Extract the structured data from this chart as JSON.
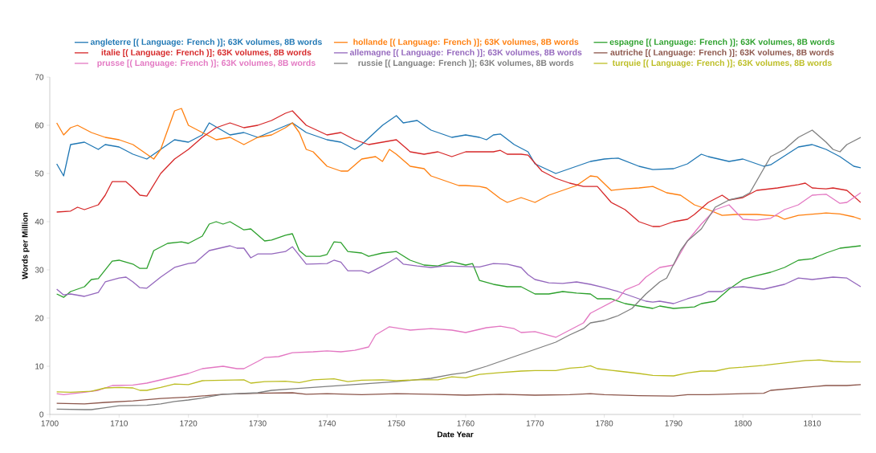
{
  "chart_data": {
    "type": "line",
    "xlabel": "Date Year",
    "ylabel": "Words per Million",
    "xlim": [
      1700,
      1817
    ],
    "ylim": [
      0,
      70
    ],
    "xticks": [
      1700,
      1710,
      1720,
      1730,
      1740,
      1750,
      1760,
      1770,
      1780,
      1790,
      1800,
      1810
    ],
    "yticks": [
      0,
      10,
      20,
      30,
      40,
      50,
      60,
      70
    ],
    "grid": false,
    "legend": "top",
    "marker": "none",
    "line_style": "solid",
    "series": [
      {
        "name": "angleterre [( Language: French )]; 63K volumes, 8B words",
        "color": "#1f77b4",
        "x": [
          1701,
          1702,
          1703,
          1705,
          1707,
          1708,
          1710,
          1712,
          1714,
          1715,
          1718,
          1720,
          1722,
          1723,
          1726,
          1728,
          1730,
          1735,
          1737,
          1740,
          1742,
          1744,
          1745,
          1748,
          1750,
          1751,
          1753,
          1755,
          1758,
          1760,
          1762,
          1763,
          1764,
          1765,
          1767,
          1769,
          1770,
          1773,
          1775,
          1778,
          1780,
          1782,
          1785,
          1787,
          1790,
          1792,
          1794,
          1795,
          1798,
          1800,
          1803,
          1804,
          1808,
          1810,
          1812,
          1814,
          1816,
          1817
        ],
        "values": [
          52,
          49.5,
          56,
          56.5,
          55,
          56,
          55.5,
          54,
          53,
          54,
          57,
          56.5,
          58,
          60.5,
          58,
          58.5,
          57.5,
          60.5,
          58.5,
          57,
          56.5,
          55,
          56,
          60,
          62,
          60.5,
          61,
          59,
          57.5,
          58,
          57.5,
          57,
          58,
          58.2,
          56,
          54.5,
          52,
          50,
          51,
          52.5,
          53,
          53.2,
          51.5,
          50.8,
          51,
          52,
          54,
          53.5,
          52.5,
          53,
          51.5,
          51.8,
          55.5,
          56,
          55,
          53.5,
          51.5,
          51.2
        ]
      },
      {
        "name": "hollande [( Language: French )]; 63K volumes, 8B words",
        "color": "#ff7f0e",
        "x": [
          1701,
          1702,
          1703,
          1704,
          1706,
          1708,
          1710,
          1712,
          1714,
          1715,
          1716,
          1718,
          1719,
          1720,
          1722,
          1724,
          1726,
          1728,
          1730,
          1732,
          1734,
          1735,
          1736,
          1737,
          1738,
          1740,
          1742,
          1743,
          1745,
          1747,
          1748,
          1749,
          1750,
          1752,
          1754,
          1755,
          1757,
          1759,
          1760,
          1762,
          1763,
          1765,
          1766,
          1768,
          1770,
          1772,
          1774,
          1776,
          1778,
          1779,
          1781,
          1783,
          1785,
          1787,
          1789,
          1791,
          1793,
          1795,
          1797,
          1799,
          1802,
          1805,
          1806,
          1808,
          1812,
          1814,
          1816,
          1817
        ],
        "values": [
          60.5,
          58,
          59.5,
          60,
          58.5,
          57.5,
          57,
          56,
          54,
          53,
          55,
          63,
          63.5,
          60,
          58.5,
          57,
          57.5,
          56,
          57.5,
          58,
          59.5,
          60.5,
          58.5,
          55,
          54.5,
          51.5,
          50.5,
          50.5,
          53,
          53.5,
          52.5,
          55,
          54,
          51.5,
          51,
          49.5,
          48.5,
          47.5,
          47.5,
          47.3,
          47,
          44.8,
          44,
          45,
          44,
          45.5,
          46.5,
          47.5,
          49.5,
          49.3,
          46.5,
          46.8,
          47,
          47.3,
          46,
          45.5,
          43.5,
          42.5,
          41.3,
          41.5,
          41.5,
          41.2,
          40.5,
          41.3,
          41.8,
          41.6,
          41,
          40.5
        ]
      },
      {
        "name": "espagne [( Language: French )]; 63K volumes, 8B words",
        "color": "#2ca02c",
        "x": [
          1701,
          1702,
          1703,
          1705,
          1706,
          1707,
          1709,
          1710,
          1712,
          1713,
          1714,
          1715,
          1717,
          1719,
          1720,
          1722,
          1723,
          1724,
          1725,
          1726,
          1728,
          1729,
          1731,
          1732,
          1734,
          1735,
          1736,
          1737,
          1739,
          1740,
          1741,
          1742,
          1743,
          1745,
          1746,
          1748,
          1750,
          1752,
          1754,
          1756,
          1758,
          1760,
          1761,
          1762,
          1764,
          1766,
          1768,
          1770,
          1772,
          1774,
          1776,
          1778,
          1779,
          1781,
          1783,
          1785,
          1787,
          1788,
          1790,
          1793,
          1794,
          1796,
          1798,
          1800,
          1802,
          1804,
          1806,
          1808,
          1810,
          1812,
          1814,
          1817
        ],
        "values": [
          25,
          24.3,
          25.5,
          26.5,
          28,
          28.2,
          31.8,
          32,
          31.2,
          30.3,
          30.3,
          34,
          35.5,
          35.8,
          35.5,
          37,
          39.5,
          40,
          39.5,
          40,
          38.3,
          38.5,
          36,
          36.2,
          37.2,
          37.5,
          34,
          32.8,
          32.8,
          33.2,
          35.8,
          35.7,
          33.8,
          33.5,
          32.8,
          33.5,
          33.8,
          32,
          31,
          30.8,
          31.7,
          31,
          31.3,
          27.8,
          27,
          26.5,
          26.5,
          25,
          25,
          25.5,
          25.2,
          25,
          24,
          24,
          23,
          22.5,
          22,
          22.5,
          22,
          22.3,
          23,
          23.5,
          26,
          28,
          28.8,
          29.5,
          30.5,
          32,
          32.3,
          33.5,
          34.5,
          35
        ]
      },
      {
        "name": "italie [( Language: French )]; 63K volumes, 8B words",
        "color": "#d62728",
        "x": [
          1701,
          1703,
          1704,
          1705,
          1707,
          1708,
          1709,
          1711,
          1712,
          1713,
          1714,
          1716,
          1718,
          1720,
          1722,
          1724,
          1726,
          1728,
          1730,
          1732,
          1734,
          1735,
          1737,
          1740,
          1742,
          1744,
          1746,
          1748,
          1750,
          1752,
          1754,
          1756,
          1758,
          1760,
          1762,
          1764,
          1765,
          1766,
          1768,
          1769,
          1771,
          1773,
          1775,
          1777,
          1779,
          1781,
          1783,
          1785,
          1787,
          1788,
          1790,
          1792,
          1793,
          1795,
          1797,
          1798,
          1800,
          1802,
          1805,
          1808,
          1809,
          1810,
          1812,
          1813,
          1815,
          1817
        ],
        "values": [
          42,
          42.2,
          43,
          42.5,
          43.5,
          45.5,
          48.3,
          48.3,
          47,
          45.5,
          45.3,
          50,
          53,
          55,
          57.5,
          59.5,
          60.5,
          59.5,
          60,
          61,
          62.5,
          63,
          60,
          58,
          58.5,
          57,
          56,
          56.5,
          57,
          54.5,
          54,
          54.5,
          53.5,
          54.5,
          54.5,
          54.5,
          54.8,
          54,
          54,
          53.8,
          50.5,
          49,
          48,
          47.3,
          47.3,
          44,
          42.5,
          40,
          39,
          39,
          40,
          40.5,
          41.5,
          44,
          45.5,
          44.5,
          45,
          46.5,
          47,
          47.7,
          48,
          47,
          46.8,
          47,
          46.5,
          44
        ]
      },
      {
        "name": "allemagne [( Language: French )]; 63K volumes, 8B words",
        "color": "#9467bd",
        "x": [
          1701,
          1702,
          1703,
          1705,
          1707,
          1708,
          1710,
          1711,
          1712,
          1713,
          1714,
          1716,
          1718,
          1720,
          1721,
          1723,
          1726,
          1727,
          1728,
          1729,
          1730,
          1732,
          1734,
          1735,
          1737,
          1740,
          1741,
          1742,
          1743,
          1745,
          1746,
          1748,
          1750,
          1751,
          1753,
          1755,
          1757,
          1760,
          1762,
          1764,
          1766,
          1768,
          1769,
          1770,
          1772,
          1774,
          1776,
          1778,
          1780,
          1782,
          1784,
          1786,
          1787,
          1788,
          1790,
          1792,
          1794,
          1795,
          1797,
          1798,
          1800,
          1803,
          1806,
          1808,
          1810,
          1813,
          1815,
          1817
        ],
        "values": [
          26,
          24.8,
          25,
          24.5,
          25.3,
          27.5,
          28.3,
          28.5,
          27.5,
          26.3,
          26.2,
          28.5,
          30.5,
          31.3,
          31.5,
          34,
          35,
          34.5,
          34.5,
          32.5,
          33.3,
          33.3,
          33.8,
          34.8,
          31.2,
          31.3,
          32,
          31.6,
          29.8,
          29.8,
          29.3,
          30.8,
          32.5,
          31.2,
          30.8,
          30.5,
          30.8,
          30.7,
          30.6,
          31.3,
          31.2,
          30.5,
          29,
          28,
          27.3,
          27.2,
          27.5,
          27,
          26.3,
          25.5,
          24.5,
          23.5,
          23.3,
          23.5,
          23,
          24,
          24.8,
          25.5,
          25.5,
          26.3,
          26.5,
          26,
          27,
          28.3,
          28,
          28.5,
          28.3,
          26.5
        ]
      },
      {
        "name": "autriche [( Language: French )]; 63K volumes, 8B words",
        "color": "#8c564b",
        "x": [
          1701,
          1705,
          1708,
          1712,
          1716,
          1720,
          1725,
          1730,
          1735,
          1737,
          1740,
          1745,
          1750,
          1755,
          1760,
          1765,
          1770,
          1775,
          1778,
          1780,
          1785,
          1790,
          1792,
          1795,
          1800,
          1803,
          1804,
          1808,
          1812,
          1815,
          1817
        ],
        "values": [
          2.3,
          2.2,
          2.5,
          2.8,
          3.3,
          3.6,
          4.2,
          4.4,
          4.5,
          4.2,
          4.3,
          4.1,
          4.3,
          4.2,
          4,
          4.2,
          4,
          4.1,
          4.3,
          4.1,
          3.9,
          3.8,
          4.1,
          4.1,
          4.3,
          4.4,
          5,
          5.5,
          6,
          6,
          6.2
        ]
      },
      {
        "name": "prusse [( Language: French )]; 63K volumes, 8B words",
        "color": "#e377c2",
        "x": [
          1701,
          1702,
          1705,
          1707,
          1709,
          1712,
          1714,
          1717,
          1720,
          1722,
          1725,
          1727,
          1728,
          1730,
          1731,
          1733,
          1735,
          1738,
          1740,
          1742,
          1744,
          1746,
          1747,
          1749,
          1752,
          1755,
          1758,
          1760,
          1763,
          1765,
          1767,
          1768,
          1770,
          1773,
          1775,
          1777,
          1778,
          1780,
          1782,
          1783,
          1785,
          1786,
          1788,
          1790,
          1792,
          1794,
          1796,
          1798,
          1800,
          1802,
          1804,
          1806,
          1808,
          1810,
          1812,
          1814,
          1815,
          1817
        ],
        "values": [
          4.3,
          4.1,
          4.6,
          5,
          6,
          6.1,
          6.5,
          7.5,
          8.5,
          9.5,
          10,
          9.5,
          9.5,
          11,
          11.8,
          12,
          12.8,
          13,
          13.2,
          13,
          13.3,
          14,
          16.5,
          18.2,
          17.5,
          17.8,
          17.5,
          17,
          18,
          18.3,
          17.8,
          17,
          17.2,
          16,
          17.5,
          19,
          21,
          22.5,
          24,
          25.8,
          27,
          28.5,
          30.5,
          31,
          36,
          39.5,
          42.5,
          43.5,
          40.5,
          40.3,
          40.7,
          42.5,
          43.5,
          45.5,
          45.7,
          43.8,
          44,
          46
        ]
      },
      {
        "name": "russie [( Language: French )]; 63K volumes, 8B words",
        "color": "#7f7f7f",
        "x": [
          1701,
          1705,
          1706,
          1708,
          1710,
          1714,
          1716,
          1718,
          1720,
          1722,
          1725,
          1730,
          1732,
          1735,
          1740,
          1745,
          1750,
          1755,
          1758,
          1760,
          1763,
          1765,
          1768,
          1770,
          1773,
          1775,
          1777,
          1778,
          1780,
          1782,
          1784,
          1786,
          1788,
          1789,
          1791,
          1792,
          1794,
          1796,
          1798,
          1800,
          1801,
          1803,
          1804,
          1806,
          1808,
          1810,
          1812,
          1813,
          1814,
          1815,
          1817
        ],
        "values": [
          1.1,
          1,
          1,
          1.4,
          1.8,
          1.9,
          2.2,
          2.7,
          3,
          3.4,
          4.2,
          4.5,
          5,
          5.3,
          5.8,
          6.3,
          6.8,
          7.5,
          8.3,
          8.7,
          10,
          11,
          12.5,
          13.5,
          15,
          16.5,
          17.8,
          19,
          19.5,
          20.5,
          22,
          25,
          27.5,
          28.3,
          34,
          36,
          38.5,
          43,
          44.5,
          45.2,
          46,
          51,
          53.5,
          55,
          57.5,
          59,
          56.5,
          55,
          54.5,
          56,
          57.5
        ]
      },
      {
        "name": "turquie [( Language: French )]; 63K volumes, 8B words",
        "color": "#bcbd22",
        "x": [
          1701,
          1703,
          1706,
          1708,
          1710,
          1712,
          1713,
          1714,
          1716,
          1718,
          1720,
          1722,
          1725,
          1728,
          1729,
          1731,
          1734,
          1736,
          1738,
          1741,
          1743,
          1745,
          1748,
          1750,
          1753,
          1756,
          1758,
          1760,
          1762,
          1765,
          1768,
          1770,
          1773,
          1775,
          1777,
          1778,
          1779,
          1782,
          1785,
          1787,
          1790,
          1792,
          1794,
          1796,
          1798,
          1800,
          1803,
          1806,
          1809,
          1811,
          1813,
          1815,
          1817
        ],
        "values": [
          4.7,
          4.6,
          4.8,
          5.5,
          5.6,
          5.5,
          5,
          5,
          5.6,
          6.3,
          6.2,
          7,
          7.1,
          7.2,
          6.5,
          6.8,
          6.9,
          6.6,
          7.2,
          7.4,
          6.8,
          7.1,
          7.2,
          7,
          7.2,
          7.2,
          7.8,
          7.6,
          8.3,
          8.7,
          9,
          9.1,
          9.1,
          9.6,
          9.8,
          10.1,
          9.5,
          9,
          8.5,
          8.1,
          8,
          8.6,
          9,
          9,
          9.6,
          9.8,
          10.2,
          10.7,
          11.2,
          11.3,
          11,
          10.9,
          10.9
        ]
      }
    ]
  }
}
